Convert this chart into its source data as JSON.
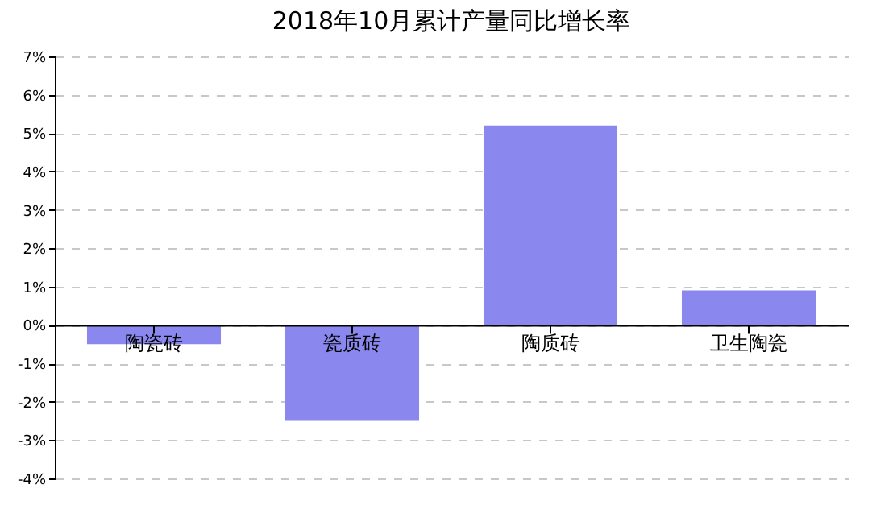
{
  "chart_data": {
    "type": "bar",
    "title": "2018年10月累计产量同比增长率",
    "categories": [
      "陶瓷砖",
      "瓷质砖",
      "陶质砖",
      "卫生陶瓷"
    ],
    "values": [
      -0.5,
      -2.5,
      5.2,
      0.9
    ],
    "color": "#8a88ee",
    "ylim": [
      -4,
      7
    ],
    "yticks": [
      {
        "value": -4,
        "label": "-4%"
      },
      {
        "value": -3,
        "label": "-3%"
      },
      {
        "value": -2,
        "label": "-2%"
      },
      {
        "value": -1,
        "label": "-1%"
      },
      {
        "value": 0,
        "label": "0%"
      },
      {
        "value": 1,
        "label": "1%"
      },
      {
        "value": 2,
        "label": "2%"
      },
      {
        "value": 3,
        "label": "3%"
      },
      {
        "value": 4,
        "label": "4%"
      },
      {
        "value": 5,
        "label": "5%"
      },
      {
        "value": 6,
        "label": "6%"
      },
      {
        "value": 7,
        "label": "7%"
      }
    ],
    "grid": "y"
  }
}
